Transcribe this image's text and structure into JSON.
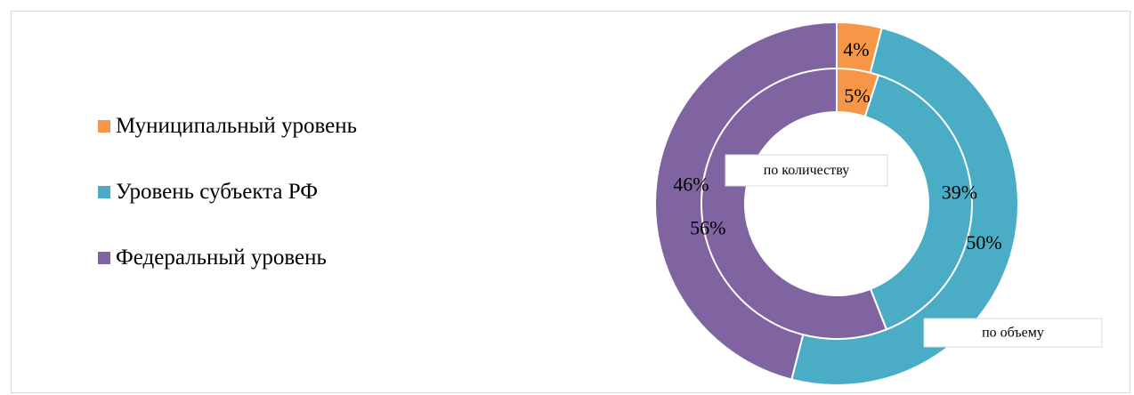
{
  "chart_data": {
    "type": "doughnut",
    "legend": {
      "placement": "left",
      "items": [
        {
          "label": "Муниципальный уровень",
          "color": "#F79646"
        },
        {
          "label": "Уровень субъекта РФ",
          "color": "#4BACC6"
        },
        {
          "label": "Федеральный уровень",
          "color": "#8064A2"
        }
      ]
    },
    "categories": [
      "Муниципальный уровень",
      "Уровень субъекта РФ",
      "Федеральный уровень"
    ],
    "series": [
      {
        "name": "по количеству",
        "ring": "inner",
        "values": [
          5,
          39,
          56
        ],
        "labels": [
          "5%",
          "39%",
          "56%"
        ]
      },
      {
        "name": "по объему",
        "ring": "outer",
        "values": [
          4,
          50,
          46
        ],
        "labels": [
          "4%",
          "50%",
          "46%"
        ]
      }
    ]
  }
}
